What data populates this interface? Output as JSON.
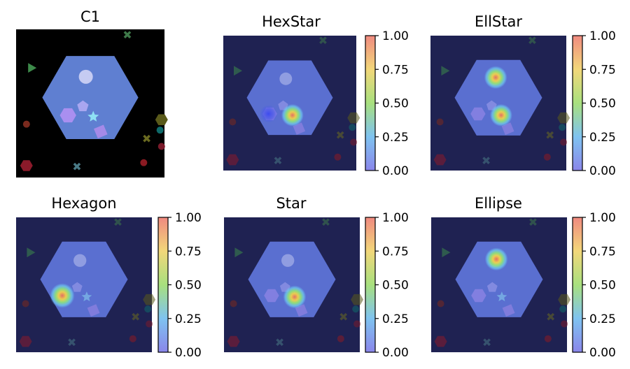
{
  "chart_data": [
    {
      "type": "heatmap",
      "title": "C1",
      "role": "input-image",
      "colorbar": false,
      "background": "#000000",
      "hexagon_color": "#5f7fd1",
      "shapes": [
        {
          "kind": "ellipse",
          "color": "#c5cbf2"
        },
        {
          "kind": "pentagon",
          "color": "#a9a6f0"
        },
        {
          "kind": "hexagon",
          "color": "#a98ff0"
        },
        {
          "kind": "star",
          "color": "#8ee0f4"
        },
        {
          "kind": "square",
          "color": "#a58ae8"
        }
      ]
    },
    {
      "type": "heatmap",
      "title": "HexStar",
      "colorbar": true,
      "colorbar_range": [
        0.0,
        1.0
      ],
      "colorbar_ticks": [
        "0.00",
        "0.25",
        "0.50",
        "0.75",
        "1.00"
      ],
      "hotspots": [
        {
          "target": "hexagon",
          "value": 0.35
        },
        {
          "target": "star",
          "value": 0.75
        }
      ]
    },
    {
      "type": "heatmap",
      "title": "EllStar",
      "colorbar": true,
      "colorbar_range": [
        0.0,
        1.0
      ],
      "colorbar_ticks": [
        "0.00",
        "0.25",
        "0.50",
        "0.75",
        "1.00"
      ],
      "hotspots": [
        {
          "target": "ellipse",
          "value": 0.8
        },
        {
          "target": "star",
          "value": 0.75
        }
      ]
    },
    {
      "type": "heatmap",
      "title": "Hexagon",
      "colorbar": true,
      "colorbar_range": [
        0.0,
        1.0
      ],
      "colorbar_ticks": [
        "0.00",
        "0.25",
        "0.50",
        "0.75",
        "1.00"
      ],
      "hotspots": [
        {
          "target": "hexagon",
          "value": 0.95
        }
      ]
    },
    {
      "type": "heatmap",
      "title": "Star",
      "colorbar": true,
      "colorbar_range": [
        0.0,
        1.0
      ],
      "colorbar_ticks": [
        "0.00",
        "0.25",
        "0.50",
        "0.75",
        "1.00"
      ],
      "hotspots": [
        {
          "target": "star",
          "value": 0.8
        }
      ]
    },
    {
      "type": "heatmap",
      "title": "Ellipse",
      "colorbar": true,
      "colorbar_range": [
        0.0,
        1.0
      ],
      "colorbar_ticks": [
        "0.00",
        "0.25",
        "0.50",
        "0.75",
        "1.00"
      ],
      "hotspots": [
        {
          "target": "ellipse",
          "value": 0.8
        }
      ]
    }
  ],
  "colors": {
    "overlay_background": "#1f2252",
    "overlay_hexagon": "#5a6fd0"
  }
}
